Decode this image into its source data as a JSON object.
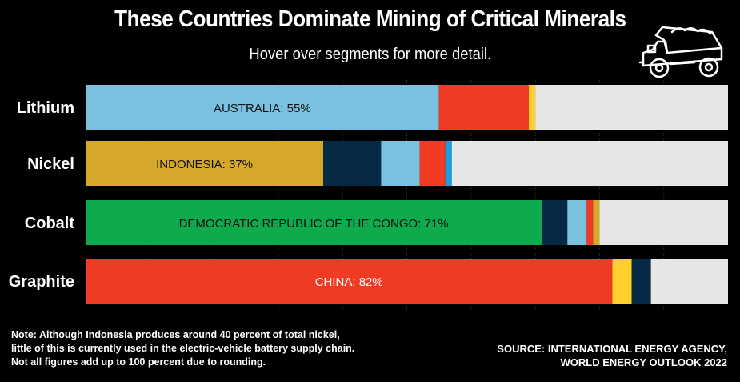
{
  "title": "These Countries Dominate Mining of Critical Minerals",
  "subtitle": "Hover over segments for more detail.",
  "icon": "mining-dump-truck-icon",
  "note": [
    "Note: Although Indonesia produces around 40 percent of total nickel,",
    "little of this is currently used in the electric-vehicle battery supply chain.",
    "Not all figures add up to 100 percent due to rounding."
  ],
  "source": [
    "SOURCE: INTERNATIONAL ENERGY AGENCY,",
    "WORLD ENERGY OUTLOOK 2022"
  ],
  "chart_data": {
    "type": "bar",
    "orientation": "horizontal",
    "stacked": true,
    "xlim": [
      0,
      100
    ],
    "grid": true,
    "categories": [
      "Lithium",
      "Nickel",
      "Cobalt",
      "Graphite"
    ],
    "bars": [
      {
        "category": "Lithium",
        "segments": [
          {
            "value": 55,
            "color": "#7ac1e0",
            "label": "AUSTRALIA: 55%",
            "label_color": "#111111"
          },
          {
            "value": 14,
            "color": "#ef3b24"
          },
          {
            "value": 1,
            "color": "#fdd02e"
          },
          {
            "value": 30,
            "color": "#e6e6e6"
          }
        ]
      },
      {
        "category": "Nickel",
        "segments": [
          {
            "value": 37,
            "color": "#d6a82a",
            "label": "INDONESIA: 37%",
            "label_color": "#111111"
          },
          {
            "value": 9,
            "color": "#062a45"
          },
          {
            "value": 6,
            "color": "#7ac1e0"
          },
          {
            "value": 4,
            "color": "#ef3b24"
          },
          {
            "value": 1,
            "color": "#1aa0e0"
          },
          {
            "value": 43,
            "color": "#e6e6e6"
          }
        ]
      },
      {
        "category": "Cobalt",
        "segments": [
          {
            "value": 71,
            "color": "#0faa4c",
            "label": "DEMOCRATIC REPUBLIC OF THE CONGO: 71%",
            "label_color": "#111111"
          },
          {
            "value": 4,
            "color": "#062a45"
          },
          {
            "value": 3,
            "color": "#7ac1e0"
          },
          {
            "value": 1,
            "color": "#ef3b24"
          },
          {
            "value": 1,
            "color": "#d6a82a"
          },
          {
            "value": 20,
            "color": "#e6e6e6"
          }
        ]
      },
      {
        "category": "Graphite",
        "segments": [
          {
            "value": 82,
            "color": "#ef3b24",
            "label": "CHINA: 82%",
            "label_color": "#ffffff"
          },
          {
            "value": 3,
            "color": "#fdd02e"
          },
          {
            "value": 3,
            "color": "#062a45"
          },
          {
            "value": 12,
            "color": "#e6e6e6"
          }
        ]
      }
    ]
  }
}
